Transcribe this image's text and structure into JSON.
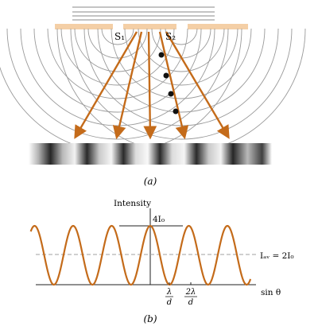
{
  "panel_a": {
    "caption": "(a)",
    "slit1_label": "S₁",
    "slit2_label": "S₂",
    "colors": {
      "barrier": "#f4cfa6",
      "wave": "#9a9a9a",
      "ray": "#c46b1a",
      "dot": "#111111"
    }
  },
  "panel_b": {
    "caption": "(b)",
    "y_label": "Intensity",
    "x_label": "sin θ",
    "peak_label": "4I₀",
    "avg_label": "Iₐᵥ = 2I₀",
    "tick1_num": "λ",
    "tick1_den": "d",
    "tick2_num": "2λ",
    "tick2_den": "d",
    "colors": {
      "curve": "#c46b1a",
      "avg_line": "#a0a0a0",
      "axis": "#222222"
    }
  },
  "chart_data": {
    "type": "line",
    "xlabel": "sin θ",
    "ylabel": "Intensity",
    "peak_value": "4I₀",
    "average_value": "2I₀",
    "xticks": [
      "λ/d",
      "2λ/d"
    ],
    "x_range_in_lambda_over_d": [
      -3.1,
      2.6
    ],
    "curve": "I = 4I₀ cos²(π d sinθ / λ)"
  }
}
